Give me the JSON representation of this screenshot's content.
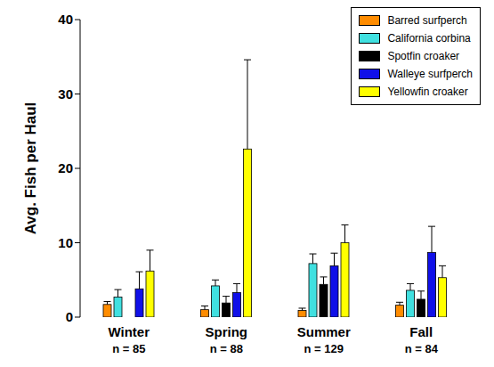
{
  "chart_data": {
    "type": "bar",
    "ylabel": "Avg. Fish per Haul",
    "categories": [
      "Winter",
      "Spring",
      "Summer",
      "Fall"
    ],
    "category_notes": [
      "n = 85",
      "n = 88",
      "n = 129",
      "n = 84"
    ],
    "ylim": [
      0,
      40
    ],
    "yticks": [
      0,
      10,
      20,
      30,
      40
    ],
    "grid": false,
    "legend": "upper right",
    "series": [
      {
        "name": "Barred surfperch",
        "color": "#ff8c00",
        "values": [
          1.7,
          1.0,
          0.9,
          1.6
        ],
        "errors": [
          0.4,
          0.5,
          0.3,
          0.4
        ]
      },
      {
        "name": "California corbina",
        "color": "#40e0e0",
        "values": [
          2.7,
          4.2,
          7.2,
          3.6
        ],
        "errors": [
          1.0,
          0.8,
          1.3,
          0.9
        ]
      },
      {
        "name": "Spotfin croaker",
        "color": "#000000",
        "values": [
          null,
          1.9,
          4.4,
          2.4
        ],
        "errors": [
          null,
          0.9,
          1.0,
          1.1
        ]
      },
      {
        "name": "Walleye surfperch",
        "color": "#1010e8",
        "values": [
          3.8,
          3.3,
          6.9,
          8.7
        ],
        "errors": [
          2.3,
          1.2,
          1.7,
          3.5
        ]
      },
      {
        "name": "Yellowfin croaker",
        "color": "#ffff00",
        "values": [
          6.2,
          22.6,
          10.0,
          5.3
        ],
        "errors": [
          2.8,
          12.0,
          2.4,
          1.6
        ]
      }
    ]
  }
}
